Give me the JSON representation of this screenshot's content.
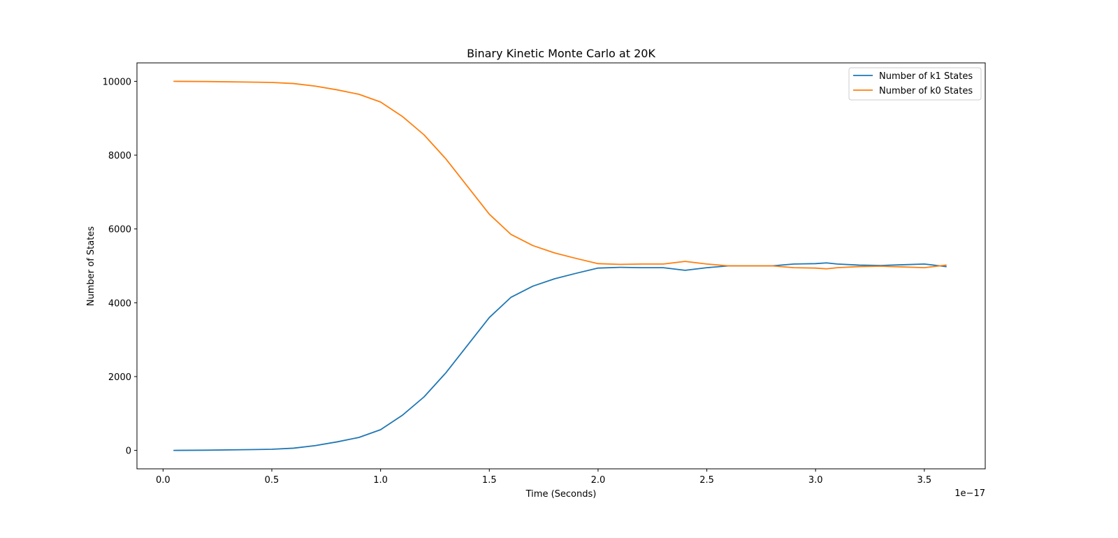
{
  "chart_data": {
    "type": "line",
    "title": "Binary Kinetic Monte Carlo at 20K",
    "xlabel": "Time (Seconds)",
    "ylabel": "Number of States",
    "x_offset_text": "1e−17",
    "xlim": [
      -0.12,
      3.78
    ],
    "ylim": [
      -500,
      10500
    ],
    "xticks": [
      0.0,
      0.5,
      1.0,
      1.5,
      2.0,
      2.5,
      3.0,
      3.5
    ],
    "xtick_labels": [
      "0.0",
      "0.5",
      "1.0",
      "1.5",
      "2.0",
      "2.5",
      "3.0",
      "3.5"
    ],
    "yticks": [
      0,
      2000,
      4000,
      6000,
      8000,
      10000
    ],
    "ytick_labels": [
      "0",
      "2000",
      "4000",
      "6000",
      "8000",
      "10000"
    ],
    "grid": false,
    "legend": "upper-right",
    "x": [
      0.05,
      0.2,
      0.4,
      0.5,
      0.6,
      0.7,
      0.8,
      0.9,
      1.0,
      1.1,
      1.2,
      1.3,
      1.4,
      1.5,
      1.6,
      1.7,
      1.8,
      1.9,
      2.0,
      2.1,
      2.2,
      2.3,
      2.4,
      2.5,
      2.6,
      2.7,
      2.8,
      2.9,
      3.0,
      3.05,
      3.1,
      3.2,
      3.3,
      3.4,
      3.5,
      3.6
    ],
    "series": [
      {
        "name": "Number of k1 States",
        "color": "#1f77b4",
        "values": [
          0,
          5,
          20,
          30,
          60,
          130,
          230,
          350,
          560,
          950,
          1450,
          2100,
          2850,
          3600,
          4150,
          4450,
          4650,
          4800,
          4940,
          4960,
          4950,
          4950,
          4880,
          4950,
          5000,
          5000,
          5000,
          5050,
          5060,
          5080,
          5050,
          5020,
          5010,
          5030,
          5050,
          4980
        ]
      },
      {
        "name": "Number of k0 States",
        "color": "#ff7f0e",
        "values": [
          10000,
          9995,
          9980,
          9970,
          9940,
          9870,
          9770,
          9650,
          9440,
          9050,
          8550,
          7900,
          7150,
          6400,
          5850,
          5550,
          5350,
          5200,
          5060,
          5040,
          5050,
          5050,
          5120,
          5050,
          5000,
          5000,
          5000,
          4950,
          4940,
          4920,
          4950,
          4980,
          4990,
          4970,
          4950,
          5020
        ]
      }
    ]
  }
}
